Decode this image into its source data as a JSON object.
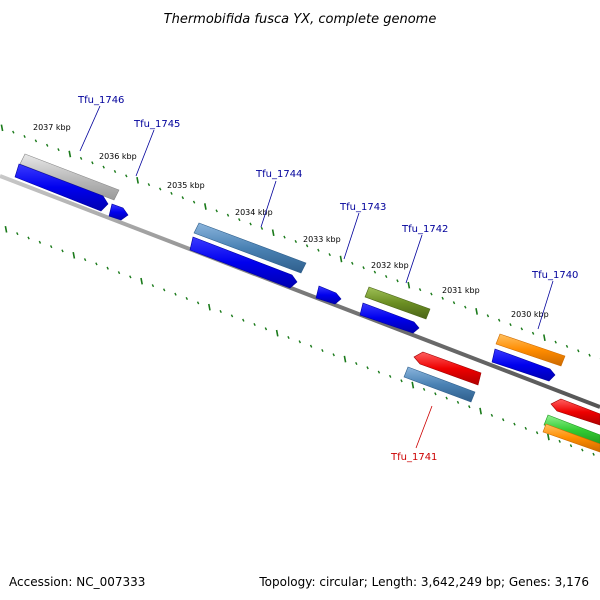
{
  "title": "Thermobifida fusca YX, complete genome",
  "footer": {
    "accession": "Accession: NC_007333",
    "summary": "Topology: circular; Length: 3,642,249 bp; Genes: 3,176"
  },
  "ruler_labels": [
    "2037 kbp",
    "2036 kbp",
    "2035 kbp",
    "2034 kbp",
    "2033 kbp",
    "2032 kbp",
    "2031 kbp",
    "2030 kbp"
  ],
  "gene_labels": [
    {
      "name": "Tfu_1746",
      "strand": "+"
    },
    {
      "name": "Tfu_1745",
      "strand": "+"
    },
    {
      "name": "Tfu_1744",
      "strand": "+"
    },
    {
      "name": "Tfu_1743",
      "strand": "+"
    },
    {
      "name": "Tfu_1742",
      "strand": "+"
    },
    {
      "name": "Tfu_1741",
      "strand": "-"
    },
    {
      "name": "Tfu_1740",
      "strand": "+"
    }
  ],
  "colors": {
    "label_plus": "#00009b",
    "label_minus": "#cc0000",
    "tick": "#1a7a1a",
    "backbone": "#7a7a7a",
    "cds": "#0000ee",
    "feature_grey": "#bdbdbd",
    "feature_steelblue": "#4a82b4",
    "feature_olive": "#6b8e23",
    "feature_orange": "#ff8c00",
    "feature_red": "#ee0000",
    "feature_green": "#33cc33"
  }
}
